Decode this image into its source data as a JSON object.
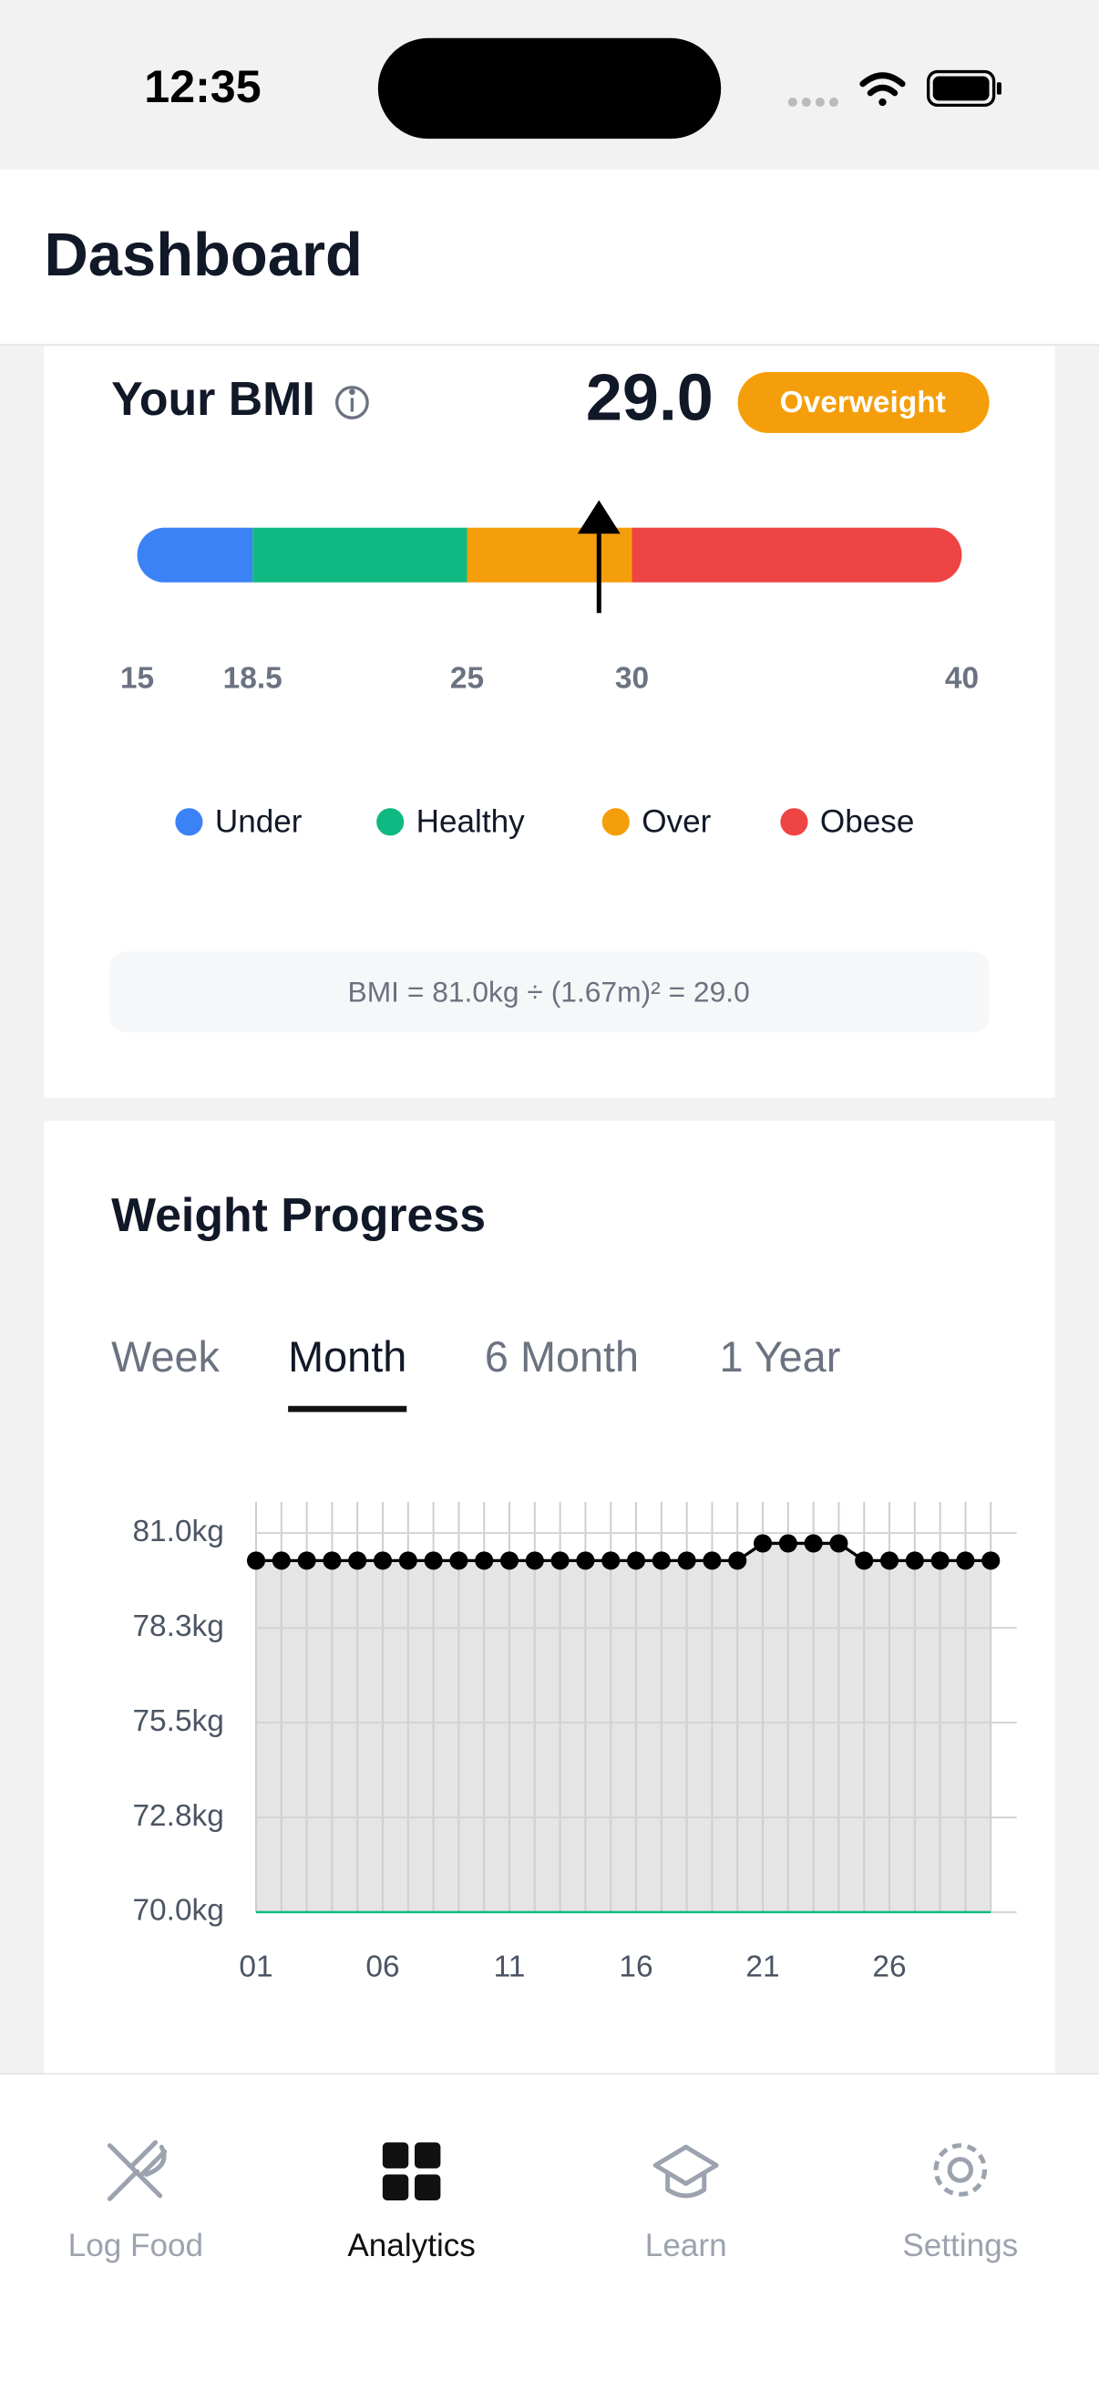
{
  "status_bar": {
    "time": "12:35"
  },
  "header": {
    "title": "Dashboard"
  },
  "chart_data": [
    {
      "type": "gauge",
      "title": "Your BMI",
      "value": 29,
      "value_label": "29.0",
      "badge": "Overweight",
      "xlim": [
        15,
        40
      ],
      "xticks": [
        15,
        18.5,
        25,
        30,
        40
      ],
      "bands": [
        {
          "name": "Under",
          "color": "#3b82f6",
          "range": [
            15,
            18.5
          ]
        },
        {
          "name": "Healthy",
          "color": "#10b981",
          "range": [
            18.5,
            25
          ]
        },
        {
          "name": "Over",
          "color": "#f59e0b",
          "range": [
            25,
            30
          ]
        },
        {
          "name": "Obese",
          "color": "#ef4444",
          "range": [
            30,
            40
          ]
        }
      ],
      "formula": "BMI = 81.0kg ÷ (1.67m)² = 29.0"
    },
    {
      "type": "line",
      "title": "Weight Progress",
      "tabs": [
        "Week",
        "Month",
        "6 Month",
        "1 Year"
      ],
      "selected_tab": 1,
      "x": [
        1,
        2,
        3,
        4,
        5,
        6,
        7,
        8,
        9,
        10,
        11,
        12,
        13,
        14,
        15,
        16,
        17,
        18,
        19,
        20,
        21,
        22,
        23,
        24,
        25,
        26,
        27,
        28,
        29,
        30
      ],
      "values": [
        80.2,
        80.2,
        80.2,
        80.2,
        80.2,
        80.2,
        80.2,
        80.2,
        80.2,
        80.2,
        80.2,
        80.2,
        80.2,
        80.2,
        80.2,
        80.2,
        80.2,
        80.2,
        80.2,
        80.2,
        80.7,
        80.7,
        80.7,
        80.7,
        80.2,
        80.2,
        80.2,
        80.2,
        80.2,
        80.2
      ],
      "color": "#000000",
      "area_color": "#e5e5e5",
      "grid": true,
      "xlim": [
        1,
        30
      ],
      "xticks": [
        {
          "value": 1,
          "label": "01"
        },
        {
          "value": 6,
          "label": "06"
        },
        11,
        16,
        21,
        26
      ],
      "ylim": [
        70,
        81.9
      ],
      "yticks": [
        {
          "value": 70,
          "label": "70.0kg"
        },
        {
          "value": 72.75,
          "label": "72.8kg"
        },
        {
          "value": 75.5,
          "label": "75.5kg"
        },
        {
          "value": 78.25,
          "label": "78.3kg"
        },
        {
          "value": 81,
          "label": "81.0kg"
        }
      ]
    }
  ],
  "nav": {
    "items": [
      "Log Food",
      "Analytics",
      "Learn",
      "Settings"
    ],
    "active": 1
  }
}
